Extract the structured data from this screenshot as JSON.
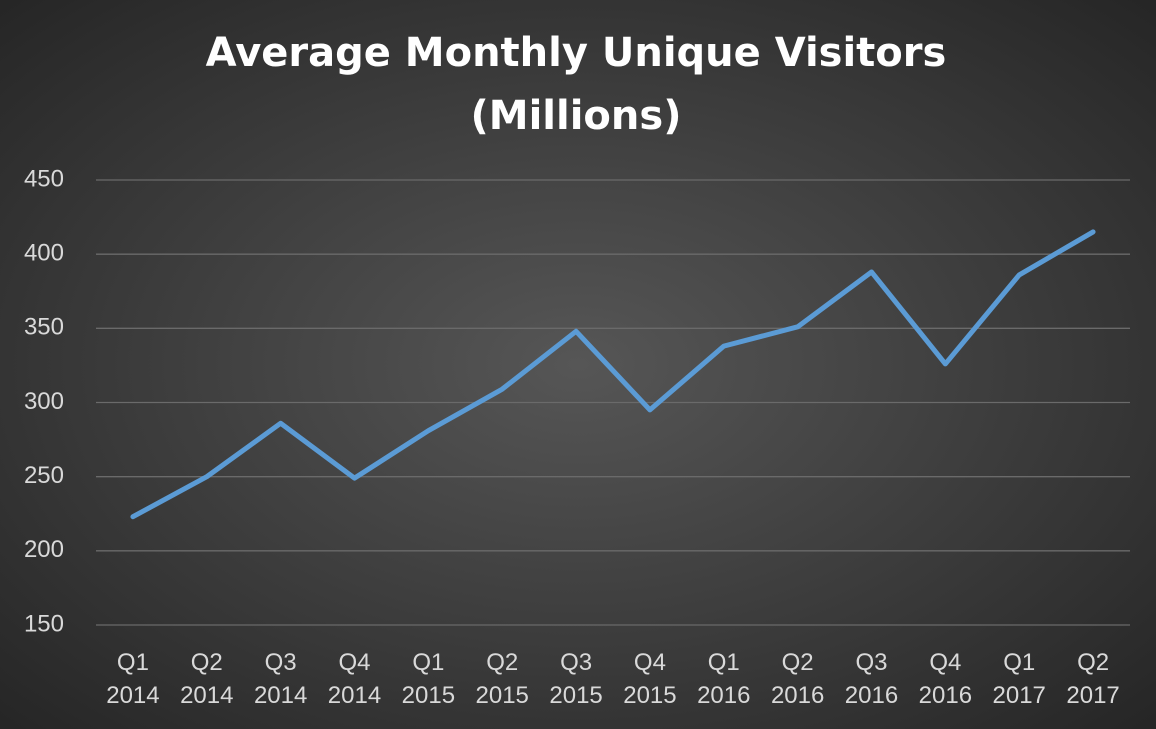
{
  "chart_data": {
    "type": "line",
    "title_lines": [
      "Average Monthly Unique Visitors",
      "(Millions)"
    ],
    "categories": [
      "Q1 2014",
      "Q2 2014",
      "Q3 2014",
      "Q4 2014",
      "Q1 2015",
      "Q2 2015",
      "Q3 2015",
      "Q4 2015",
      "Q1 2016",
      "Q2 2016",
      "Q3 2016",
      "Q4 2016",
      "Q1 2017",
      "Q2 2017"
    ],
    "values": [
      223,
      250,
      286,
      249,
      281,
      309,
      348,
      295,
      338,
      351,
      388,
      326,
      386,
      415
    ],
    "color": "#5b9bd5",
    "ylim": [
      150,
      450
    ],
    "yticks": [
      150,
      200,
      250,
      300,
      350,
      400,
      450
    ],
    "grid": true
  }
}
